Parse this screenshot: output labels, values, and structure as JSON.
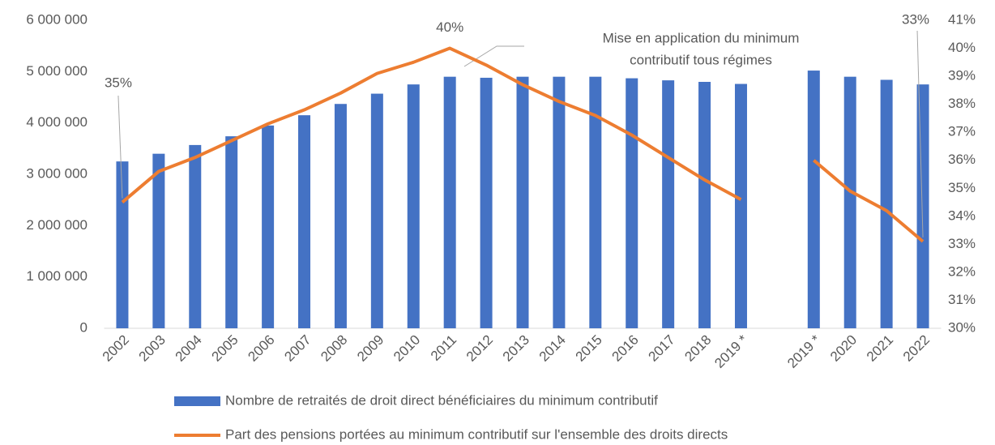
{
  "chart_data": {
    "type": "bar_line",
    "categories": [
      "2002",
      "2003",
      "2004",
      "2005",
      "2006",
      "2007",
      "2008",
      "2009",
      "2010",
      "2011",
      "2012",
      "2013",
      "2014",
      "2015",
      "2016",
      "2017",
      "2018",
      "2019 *",
      null,
      "2019 *",
      "2020",
      "2021",
      "2022"
    ],
    "series": [
      {
        "name": "Nombre de retraités de droit direct bénéficiaires du minimum contributif",
        "type": "bar",
        "color": "#4472c4",
        "values": [
          3250000,
          3400000,
          3570000,
          3740000,
          3950000,
          4150000,
          4370000,
          4570000,
          4750000,
          4900000,
          4880000,
          4900000,
          4900000,
          4900000,
          4870000,
          4830000,
          4800000,
          4760000,
          null,
          5020000,
          4900000,
          4840000,
          4750000
        ]
      },
      {
        "name": "Part des pensions portées au minimum contributif sur l'ensemble des droits directs",
        "type": "line",
        "axis": "y2",
        "color": "#ed7d31",
        "values": [
          34.5,
          35.6,
          36.1,
          36.7,
          37.3,
          37.8,
          38.4,
          39.1,
          39.5,
          40.0,
          39.4,
          38.7,
          38.1,
          37.6,
          36.9,
          36.1,
          35.3,
          34.6,
          null,
          36.0,
          34.9,
          34.2,
          33.1
        ],
        "value_labels": [
          "35%",
          null,
          null,
          null,
          null,
          null,
          null,
          null,
          null,
          "40%",
          null,
          null,
          null,
          null,
          null,
          null,
          null,
          null,
          null,
          null,
          null,
          null,
          "33%"
        ]
      }
    ],
    "annotation": [
      "Mise en application du minimum",
      "contributif tous régimes"
    ],
    "ylim": [
      0,
      6000000
    ],
    "yticks": [
      0,
      {
        "value": 1000000,
        "label": "1 000 000"
      },
      {
        "value": 2000000,
        "label": "2 000 000"
      },
      {
        "value": 3000000,
        "label": "3 000 000"
      },
      {
        "value": 4000000,
        "label": "4 000 000"
      },
      {
        "value": 5000000,
        "label": "5 000 000"
      },
      {
        "value": 6000000,
        "label": "6 000 000"
      }
    ],
    "y2lim": [
      30,
      41
    ],
    "y2ticks": [
      {
        "value": 30,
        "label": "30%"
      },
      {
        "value": 31,
        "label": "31%"
      },
      {
        "value": 32,
        "label": "32%"
      },
      {
        "value": 33,
        "label": "33%"
      },
      {
        "value": 34,
        "label": "34%"
      },
      {
        "value": 35,
        "label": "35%"
      },
      {
        "value": 36,
        "label": "36%"
      },
      {
        "value": 37,
        "label": "37%"
      },
      {
        "value": 38,
        "label": "38%"
      },
      {
        "value": 39,
        "label": "39%"
      },
      {
        "value": 40,
        "label": "40%"
      },
      {
        "value": 41,
        "label": "41%"
      }
    ],
    "legend": "bottom"
  }
}
